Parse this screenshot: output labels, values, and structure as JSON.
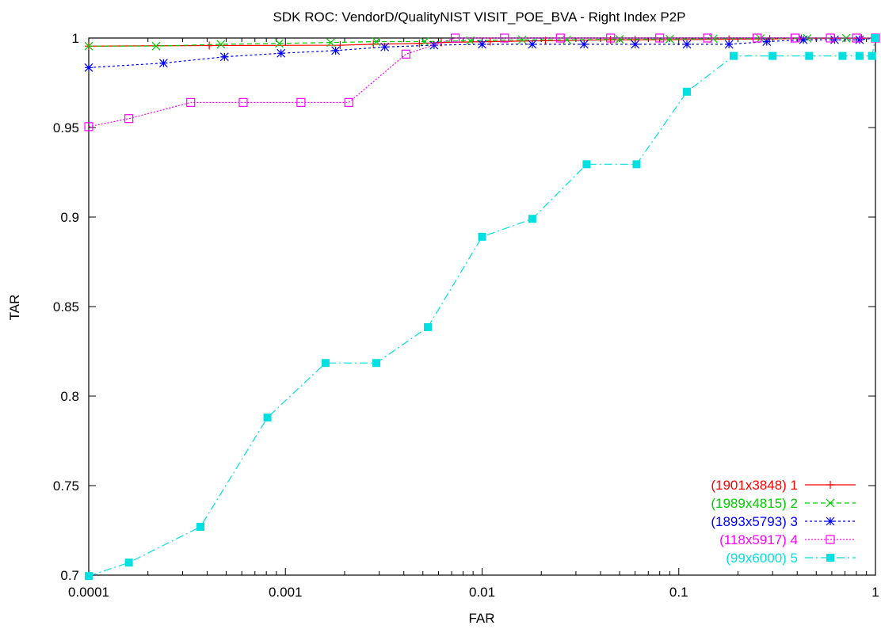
{
  "chart_data": {
    "type": "line",
    "title": "SDK ROC: VendorD/QualityNIST VISIT_POE_BVA - Right Index P2P",
    "xlabel": "FAR",
    "ylabel": "TAR",
    "xscale": "log",
    "xlim": [
      0.0001,
      1
    ],
    "ylim": [
      0.7,
      1.0
    ],
    "xticks": [
      0.0001,
      0.001,
      0.01,
      0.1,
      1
    ],
    "xtick_labels": [
      "0.0001",
      "0.001",
      "0.01",
      "0.1",
      "1"
    ],
    "yticks": [
      0.7,
      0.75,
      0.8,
      0.85,
      0.9,
      0.95,
      1.0
    ],
    "ytick_labels": [
      "0.7",
      "0.75",
      "0.8",
      "0.85",
      "0.9",
      "0.95",
      "1"
    ],
    "grid": false,
    "legend_position": "bottom-right",
    "series": [
      {
        "name": "(1901x3848) 1",
        "color": "#ff0000",
        "marker": "plus",
        "dash": "",
        "points": [
          [
            0.0001,
            0.9955
          ],
          [
            0.00041,
            0.9958
          ],
          [
            0.0019,
            0.996
          ],
          [
            0.0028,
            0.9965
          ],
          [
            0.0048,
            0.997
          ],
          [
            0.0062,
            0.9975
          ],
          [
            0.011,
            0.998
          ],
          [
            0.021,
            0.9985
          ],
          [
            0.045,
            0.999
          ],
          [
            0.06,
            0.999
          ],
          [
            0.18,
            0.9993
          ],
          [
            0.29,
            0.9995
          ],
          [
            0.42,
            0.9997
          ],
          [
            0.62,
            0.9998
          ],
          [
            0.85,
            0.9999
          ],
          [
            1,
            1.0
          ]
        ]
      },
      {
        "name": "(1989x4815) 2",
        "color": "#00cc00",
        "marker": "x",
        "dash": "6,4",
        "points": [
          [
            0.0001,
            0.9955
          ],
          [
            0.00022,
            0.9955
          ],
          [
            0.00047,
            0.9965
          ],
          [
            0.00093,
            0.997
          ],
          [
            0.0017,
            0.9975
          ],
          [
            0.0029,
            0.998
          ],
          [
            0.0051,
            0.998
          ],
          [
            0.0087,
            0.9985
          ],
          [
            0.016,
            0.999
          ],
          [
            0.027,
            0.999
          ],
          [
            0.05,
            0.9993
          ],
          [
            0.09,
            0.9994
          ],
          [
            0.15,
            0.9996
          ],
          [
            0.26,
            0.9997
          ],
          [
            0.45,
            0.9998
          ],
          [
            0.71,
            0.9999
          ],
          [
            1,
            1.0
          ]
        ]
      },
      {
        "name": "(1893x5793) 3",
        "color": "#0000ff",
        "marker": "star",
        "dash": "3,3",
        "points": [
          [
            0.0001,
            0.9835
          ],
          [
            0.00024,
            0.986
          ],
          [
            0.00049,
            0.9895
          ],
          [
            0.00095,
            0.9915
          ],
          [
            0.0018,
            0.993
          ],
          [
            0.0032,
            0.995
          ],
          [
            0.0057,
            0.996
          ],
          [
            0.01,
            0.9965
          ],
          [
            0.018,
            0.9965
          ],
          [
            0.033,
            0.9965
          ],
          [
            0.06,
            0.9965
          ],
          [
            0.11,
            0.9965
          ],
          [
            0.18,
            0.9965
          ],
          [
            0.28,
            0.998
          ],
          [
            0.43,
            0.999
          ],
          [
            0.62,
            0.999
          ],
          [
            0.83,
            0.999
          ],
          [
            1,
            1.0
          ]
        ]
      },
      {
        "name": "(118x5917) 4",
        "color": "#ff00ff",
        "marker": "square",
        "dash": "2,2",
        "points": [
          [
            0.0001,
            0.9505
          ],
          [
            0.00016,
            0.955
          ],
          [
            0.00033,
            0.964
          ],
          [
            0.00061,
            0.964
          ],
          [
            0.0012,
            0.964
          ],
          [
            0.0021,
            0.964
          ],
          [
            0.0041,
            0.991
          ],
          [
            0.0073,
            1.0
          ],
          [
            0.013,
            1.0
          ],
          [
            0.025,
            1.0
          ],
          [
            0.045,
            1.0
          ],
          [
            0.08,
            1.0
          ],
          [
            0.14,
            1.0
          ],
          [
            0.25,
            1.0
          ],
          [
            0.39,
            1.0
          ],
          [
            0.59,
            1.0
          ],
          [
            0.8,
            1.0
          ],
          [
            1,
            1.0
          ]
        ]
      },
      {
        "name": "(99x6000) 5",
        "color": "#00e0e0",
        "marker": "filled-square",
        "dash": "10,4,2,4",
        "points": [
          [
            0.0001,
            0.6995
          ],
          [
            0.00016,
            0.707
          ],
          [
            0.00037,
            0.727
          ],
          [
            0.00081,
            0.788
          ],
          [
            0.0016,
            0.8185
          ],
          [
            0.0029,
            0.8185
          ],
          [
            0.0053,
            0.8385
          ],
          [
            0.01,
            0.889
          ],
          [
            0.018,
            0.899
          ],
          [
            0.034,
            0.9295
          ],
          [
            0.061,
            0.9295
          ],
          [
            0.11,
            0.97
          ],
          [
            0.19,
            0.99
          ],
          [
            0.3,
            0.99
          ],
          [
            0.46,
            0.99
          ],
          [
            0.68,
            0.99
          ],
          [
            0.83,
            0.99
          ],
          [
            0.96,
            0.99
          ],
          [
            1,
            1.0
          ]
        ]
      }
    ]
  }
}
